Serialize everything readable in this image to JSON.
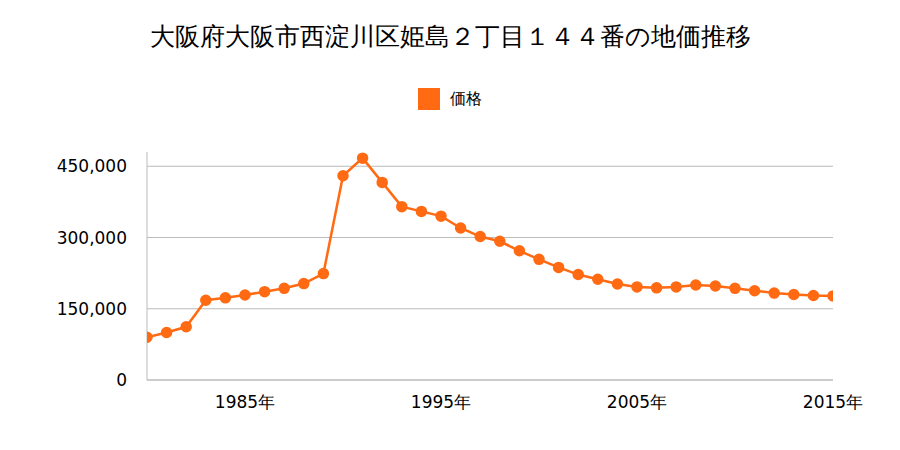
{
  "chart_data": {
    "type": "line",
    "title": "大阪府大阪市西淀川区姫島２丁目１４４番の地価推移",
    "x": [
      1980,
      1981,
      1982,
      1983,
      1984,
      1985,
      1986,
      1987,
      1988,
      1989,
      1990,
      1991,
      1992,
      1993,
      1994,
      1995,
      1996,
      1997,
      1998,
      1999,
      2000,
      2001,
      2002,
      2003,
      2004,
      2005,
      2006,
      2007,
      2008,
      2009,
      2010,
      2011,
      2012,
      2013,
      2014,
      2015
    ],
    "series": [
      {
        "name": "価格",
        "color": "#ff6a13",
        "marker": "circle",
        "values": [
          90000,
          100000,
          112000,
          168000,
          173000,
          179000,
          186000,
          193000,
          203000,
          224000,
          430000,
          467000,
          416000,
          365000,
          355000,
          345000,
          320000,
          302000,
          292000,
          272000,
          254000,
          237000,
          222000,
          212000,
          202000,
          196000,
          194000,
          196000,
          200000,
          198000,
          193000,
          188000,
          183000,
          180000,
          178000,
          177000
        ]
      }
    ],
    "xlim": [
      1980,
      2015
    ],
    "xticks": [
      {
        "value": 1985,
        "label": "1985年"
      },
      {
        "value": 1995,
        "label": "1995年"
      },
      {
        "value": 2005,
        "label": "2005年"
      },
      {
        "value": 2015,
        "label": "2015年"
      }
    ],
    "ylim": [
      0,
      480000
    ],
    "yticks": [
      0,
      {
        "value": 150000,
        "label": "150,000"
      },
      {
        "value": 300000,
        "label": "300,000"
      },
      {
        "value": 450000,
        "label": "450,000"
      }
    ],
    "grid": true,
    "legend": "top"
  }
}
